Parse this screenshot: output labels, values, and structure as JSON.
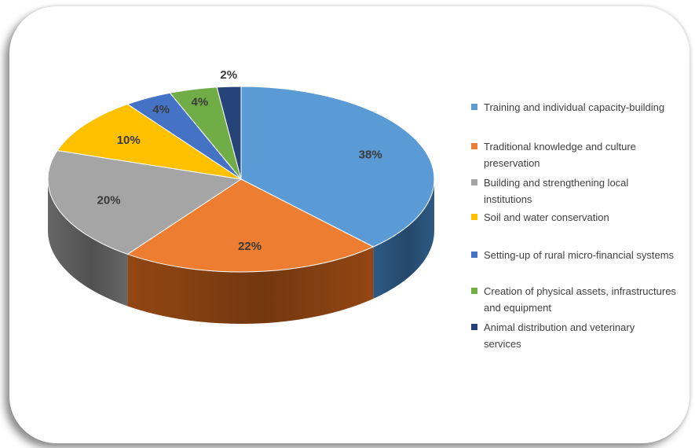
{
  "chart_data": {
    "type": "pie",
    "title": "",
    "slices": [
      {
        "label": "Training and individual capacity-building",
        "value": 38,
        "display": "38%",
        "color": "#5b9bd5",
        "side": "#2f5f8c"
      },
      {
        "label": "Traditional knowledge and culture preservation",
        "value": 22,
        "display": "22%",
        "color": "#ed7d31",
        "side": "#9a4a14"
      },
      {
        "label": "Building and strengthening local institutions",
        "value": 20,
        "display": "20%",
        "color": "#a5a5a5",
        "side": "#6b6b6b"
      },
      {
        "label": "Soil and water conservation",
        "value": 10,
        "display": "10%",
        "color": "#ffc000",
        "side": "#a87f00"
      },
      {
        "label": "Setting-up of rural micro-financial systems",
        "value": 4,
        "display": "4%",
        "color": "#4472c4",
        "side": "#2a4a82"
      },
      {
        "label": "Creation of physical assets, infrastructures and equipment",
        "value": 4,
        "display": "4%",
        "color": "#70ad47",
        "side": "#4a7a2c"
      },
      {
        "label": "Animal distribution and veterinary services",
        "value": 2,
        "display": "2%",
        "color": "#264478",
        "side": "#162a4c"
      }
    ],
    "legend_position": "right"
  },
  "legend": {
    "items": [
      {
        "lines": [
          "Training and individual capacity-building"
        ]
      },
      {
        "lines": [
          "Traditional knowledge and culture",
          "preservation"
        ]
      },
      {
        "lines": [
          "Building and strengthening local",
          "institutions"
        ]
      },
      {
        "lines": [
          "Soil and water conservation"
        ]
      },
      {
        "lines": [
          "Setting-up of rural micro-financial systems"
        ]
      },
      {
        "lines": [
          "Creation of physical assets, infrastructures",
          "and equipment"
        ]
      },
      {
        "lines": [
          "Animal distribution and veterinary",
          "services"
        ]
      }
    ]
  }
}
